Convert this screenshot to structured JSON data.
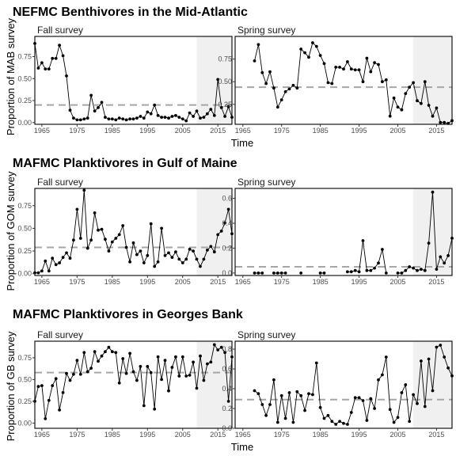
{
  "chart_data": [
    {
      "type": "line",
      "title": "NEFMC Benthivores in the Mid-Atlantic",
      "ylabel": "Proportion of MAB survey",
      "xlabel": "Time",
      "panels": [
        {
          "label": "Fall survey",
          "xlim": [
            1963,
            2019
          ],
          "ylim": [
            -0.02,
            0.98
          ],
          "xticks": [
            1965,
            1975,
            1985,
            1995,
            2005,
            2015
          ],
          "yticks": [
            0.0,
            0.25,
            0.5,
            0.75
          ],
          "ytick_labels": [
            "0.00",
            "0.25",
            "0.50",
            "0.75"
          ],
          "highlight_start": 2009,
          "mean": 0.2,
          "series": [
            {
              "x": [
                1963,
                1964,
                1965,
                1966,
                1967,
                1968,
                1969,
                1970,
                1971,
                1972,
                1973,
                1974,
                1975,
                1976,
                1977,
                1978,
                1979,
                1980,
                1981,
                1982,
                1983,
                1984,
                1985,
                1986,
                1987,
                1988,
                1989,
                1990,
                1991,
                1992,
                1993,
                1994,
                1995,
                1996,
                1997,
                1998,
                1999,
                2000,
                2001,
                2002,
                2003,
                2004,
                2005,
                2006,
                2007,
                2008,
                2009,
                2010,
                2011,
                2012,
                2013,
                2014,
                2015,
                2016,
                2017,
                2018,
                2019
              ],
              "y": [
                0.9,
                0.62,
                0.68,
                0.61,
                0.61,
                0.73,
                0.73,
                0.88,
                0.76,
                0.53,
                0.14,
                0.05,
                0.03,
                0.03,
                0.04,
                0.05,
                0.31,
                0.13,
                0.17,
                0.23,
                0.06,
                0.04,
                0.04,
                0.03,
                0.05,
                0.04,
                0.03,
                0.04,
                0.04,
                0.05,
                0.07,
                0.05,
                0.12,
                0.1,
                0.2,
                0.08,
                0.06,
                0.06,
                0.05,
                0.07,
                0.08,
                0.06,
                0.04,
                0.02,
                0.11,
                0.07,
                0.13,
                0.05,
                0.06,
                0.1,
                0.15,
                0.08,
                0.49,
                0.17,
                0.07,
                0.18,
                0.06
              ]
            }
          ]
        },
        {
          "label": "Spring survey",
          "xlim": [
            1963,
            2019
          ],
          "ylim": [
            0.03,
            1.0
          ],
          "xticks": [
            1965,
            1975,
            1985,
            1995,
            2005,
            2015
          ],
          "yticks": [
            0.25,
            0.5,
            0.75
          ],
          "ytick_labels": [
            "0.25",
            "0.50",
            "0.75"
          ],
          "highlight_start": 2009,
          "mean": 0.44,
          "series": [
            {
              "x": [
                1968,
                1969,
                1970,
                1971,
                1972,
                1973,
                1974,
                1975,
                1976,
                1977,
                1978,
                1979,
                1980,
                1981,
                1982,
                1983,
                1984,
                1985,
                1986,
                1987,
                1988,
                1989,
                1990,
                1991,
                1992,
                1993,
                1994,
                1995,
                1996,
                1997,
                1998,
                1999,
                2000,
                2001,
                2002,
                2003,
                2004,
                2005,
                2006,
                2007,
                2008,
                2009,
                2010,
                2011,
                2012,
                2013,
                2014,
                2015,
                2016,
                2017,
                2018,
                2019
              ],
              "y": [
                0.73,
                0.91,
                0.6,
                0.48,
                0.61,
                0.43,
                0.22,
                0.3,
                0.39,
                0.42,
                0.46,
                0.43,
                0.86,
                0.82,
                0.77,
                0.93,
                0.89,
                0.79,
                0.7,
                0.49,
                0.48,
                0.66,
                0.66,
                0.64,
                0.72,
                0.64,
                0.63,
                0.63,
                0.5,
                0.76,
                0.61,
                0.71,
                0.69,
                0.5,
                0.52,
                0.12,
                0.32,
                0.22,
                0.19,
                0.37,
                0.44,
                0.49,
                0.29,
                0.26,
                0.5,
                0.24,
                0.12,
                0.21,
                0.05,
                0.05,
                0.04,
                0.07
              ]
            }
          ]
        }
      ]
    },
    {
      "type": "line",
      "title": "MAFMC Planktivores in Gulf of Maine",
      "ylabel": "Proportion of GOM survey",
      "xlabel": "",
      "panels": [
        {
          "label": "Fall survey",
          "xlim": [
            1963,
            2019
          ],
          "ylim": [
            -0.02,
            0.94
          ],
          "xticks": [
            1965,
            1975,
            1985,
            1995,
            2005,
            2015
          ],
          "yticks": [
            0.0,
            0.25,
            0.5,
            0.75
          ],
          "ytick_labels": [
            "0.00",
            "0.25",
            "0.50",
            "0.75"
          ],
          "highlight_start": 2009,
          "mean": 0.29,
          "series": [
            {
              "x": [
                1963,
                1964,
                1965,
                1966,
                1967,
                1968,
                1969,
                1970,
                1971,
                1972,
                1973,
                1974,
                1975,
                1976,
                1977,
                1978,
                1979,
                1980,
                1981,
                1982,
                1983,
                1984,
                1985,
                1986,
                1987,
                1988,
                1989,
                1990,
                1991,
                1992,
                1993,
                1994,
                1995,
                1996,
                1997,
                1998,
                1999,
                2000,
                2001,
                2002,
                2003,
                2004,
                2005,
                2006,
                2007,
                2008,
                2009,
                2010,
                2011,
                2012,
                2013,
                2014,
                2015,
                2016,
                2017,
                2018,
                2019
              ],
              "y": [
                0.01,
                0.01,
                0.03,
                0.14,
                0.03,
                0.17,
                0.1,
                0.12,
                0.18,
                0.23,
                0.17,
                0.37,
                0.71,
                0.39,
                0.92,
                0.28,
                0.37,
                0.67,
                0.48,
                0.49,
                0.38,
                0.25,
                0.35,
                0.39,
                0.43,
                0.53,
                0.29,
                0.13,
                0.34,
                0.21,
                0.25,
                0.12,
                0.2,
                0.55,
                0.08,
                0.13,
                0.5,
                0.2,
                0.23,
                0.18,
                0.24,
                0.16,
                0.12,
                0.16,
                0.27,
                0.25,
                0.16,
                0.08,
                0.16,
                0.26,
                0.3,
                0.24,
                0.43,
                0.47,
                0.56,
                0.71,
                0.44
              ]
            }
          ]
        },
        {
          "label": "Spring survey",
          "xlim": [
            1963,
            2019
          ],
          "ylim": [
            -0.02,
            0.68
          ],
          "xticks": [
            1965,
            1975,
            1985,
            1995,
            2005,
            2015
          ],
          "yticks": [
            0.0,
            0.2,
            0.4,
            0.6
          ],
          "ytick_labels": [
            "0.0",
            "0.2",
            "0.4",
            "0.6"
          ],
          "highlight_start": 2009,
          "mean": 0.05,
          "series": [
            {
              "x": [
                1968,
                1969,
                1970
              ],
              "y": [
                0.0,
                0.0,
                0.0
              ]
            },
            {
              "x": [
                1973,
                1974,
                1975,
                1976
              ],
              "y": [
                0.0,
                0.0,
                0.0,
                0.0
              ]
            },
            {
              "x": [
                1980
              ],
              "y": [
                0.0
              ]
            },
            {
              "x": [
                1985,
                1986
              ],
              "y": [
                0.0,
                0.0
              ]
            },
            {
              "x": [
                1992,
                1993,
                1994,
                1995,
                1996,
                1997,
                1998,
                1999,
                2000,
                2001,
                2002
              ],
              "y": [
                0.01,
                0.01,
                0.02,
                0.01,
                0.26,
                0.02,
                0.02,
                0.04,
                0.08,
                0.19,
                0.0
              ]
            },
            {
              "x": [
                2005,
                2006,
                2007,
                2008,
                2009,
                2010,
                2011,
                2012,
                2013,
                2014,
                2015,
                2016,
                2017,
                2018,
                2019
              ],
              "y": [
                0.0,
                0.0,
                0.02,
                0.05,
                0.04,
                0.02,
                0.03,
                0.02,
                0.24,
                0.65,
                0.03,
                0.13,
                0.08,
                0.14,
                0.28
              ]
            }
          ]
        }
      ]
    },
    {
      "type": "line",
      "title": "MAFMC Planktivores in Georges Bank",
      "ylabel": "Proportion of GB survey",
      "xlabel": "Time",
      "panels": [
        {
          "label": "Fall survey",
          "xlim": [
            1963,
            2019
          ],
          "ylim": [
            -0.06,
            0.94
          ],
          "xticks": [
            1965,
            1975,
            1985,
            1995,
            2005,
            2015
          ],
          "yticks": [
            0.0,
            0.25,
            0.5,
            0.75
          ],
          "ytick_labels": [
            "0.00",
            "0.25",
            "0.50",
            "0.75"
          ],
          "highlight_start": 2009,
          "mean": 0.58,
          "series": [
            {
              "x": [
                1963,
                1964,
                1965,
                1966,
                1967,
                1968,
                1969,
                1970,
                1971,
                1972,
                1973,
                1974,
                1975,
                1976,
                1977,
                1978,
                1979,
                1980,
                1981,
                1982,
                1983,
                1984,
                1985,
                1986,
                1987,
                1988,
                1989,
                1990,
                1991,
                1992,
                1993,
                1994,
                1995,
                1996,
                1997,
                1998,
                1999,
                2000,
                2001,
                2002,
                2003,
                2004,
                2005,
                2006,
                2007,
                2008,
                2009,
                2010,
                2011,
                2012,
                2013,
                2014,
                2015,
                2016,
                2017,
                2018,
                2019
              ],
              "y": [
                0.25,
                0.42,
                0.43,
                0.05,
                0.26,
                0.43,
                0.51,
                0.15,
                0.35,
                0.57,
                0.49,
                0.56,
                0.72,
                0.56,
                0.81,
                0.59,
                0.63,
                0.82,
                0.71,
                0.77,
                0.82,
                0.87,
                0.82,
                0.81,
                0.46,
                0.74,
                0.57,
                0.8,
                0.59,
                0.49,
                0.65,
                0.2,
                0.65,
                0.58,
                0.16,
                0.76,
                0.5,
                0.72,
                0.37,
                0.64,
                0.76,
                0.54,
                0.76,
                0.54,
                0.55,
                0.7,
                0.4,
                0.77,
                0.49,
                0.68,
                0.7,
                0.9,
                0.84,
                0.87,
                0.81,
                0.25,
                0.76
              ]
            }
          ]
        },
        {
          "label": "Spring survey",
          "xlim": [
            1963,
            2019
          ],
          "ylim": [
            0.0,
            0.88
          ],
          "xticks": [
            1965,
            1975,
            1985,
            1995,
            2005,
            2015
          ],
          "yticks": [
            0.0,
            0.2,
            0.4,
            0.6,
            0.8
          ],
          "ytick_labels": [
            "0.0",
            "0.2",
            "0.4",
            "0.6",
            "0.8"
          ],
          "highlight_start": 2009,
          "mean": 0.29,
          "series": [
            {
              "x": [
                1968,
                1969,
                1970,
                1971,
                1972,
                1973,
                1974,
                1975,
                1976,
                1977,
                1978,
                1979,
                1980,
                1981,
                1982,
                1983,
                1984,
                1985,
                1986,
                1987,
                1988,
                1989,
                1990,
                1991,
                1992,
                1993,
                1994,
                1995,
                1996,
                1997,
                1998,
                1999,
                2000,
                2001,
                2002,
                2003,
                2004,
                2005,
                2006,
                2007,
                2008,
                2009,
                2010,
                2011,
                2012,
                2013,
                2014,
                2015,
                2016,
                2017,
                2018,
                2019
              ],
              "y": [
                0.38,
                0.35,
                0.24,
                0.13,
                0.24,
                0.49,
                0.06,
                0.33,
                0.1,
                0.36,
                0.06,
                0.37,
                0.33,
                0.18,
                0.35,
                0.34,
                0.66,
                0.21,
                0.1,
                0.13,
                0.07,
                0.04,
                0.07,
                0.05,
                0.04,
                0.16,
                0.31,
                0.31,
                0.28,
                0.08,
                0.3,
                0.2,
                0.49,
                0.54,
                0.72,
                0.19,
                0.06,
                0.11,
                0.36,
                0.44,
                0.07,
                0.34,
                0.25,
                0.68,
                0.22,
                0.7,
                0.38,
                0.82,
                0.84,
                0.72,
                0.61,
                0.53
              ]
            }
          ]
        }
      ]
    }
  ]
}
